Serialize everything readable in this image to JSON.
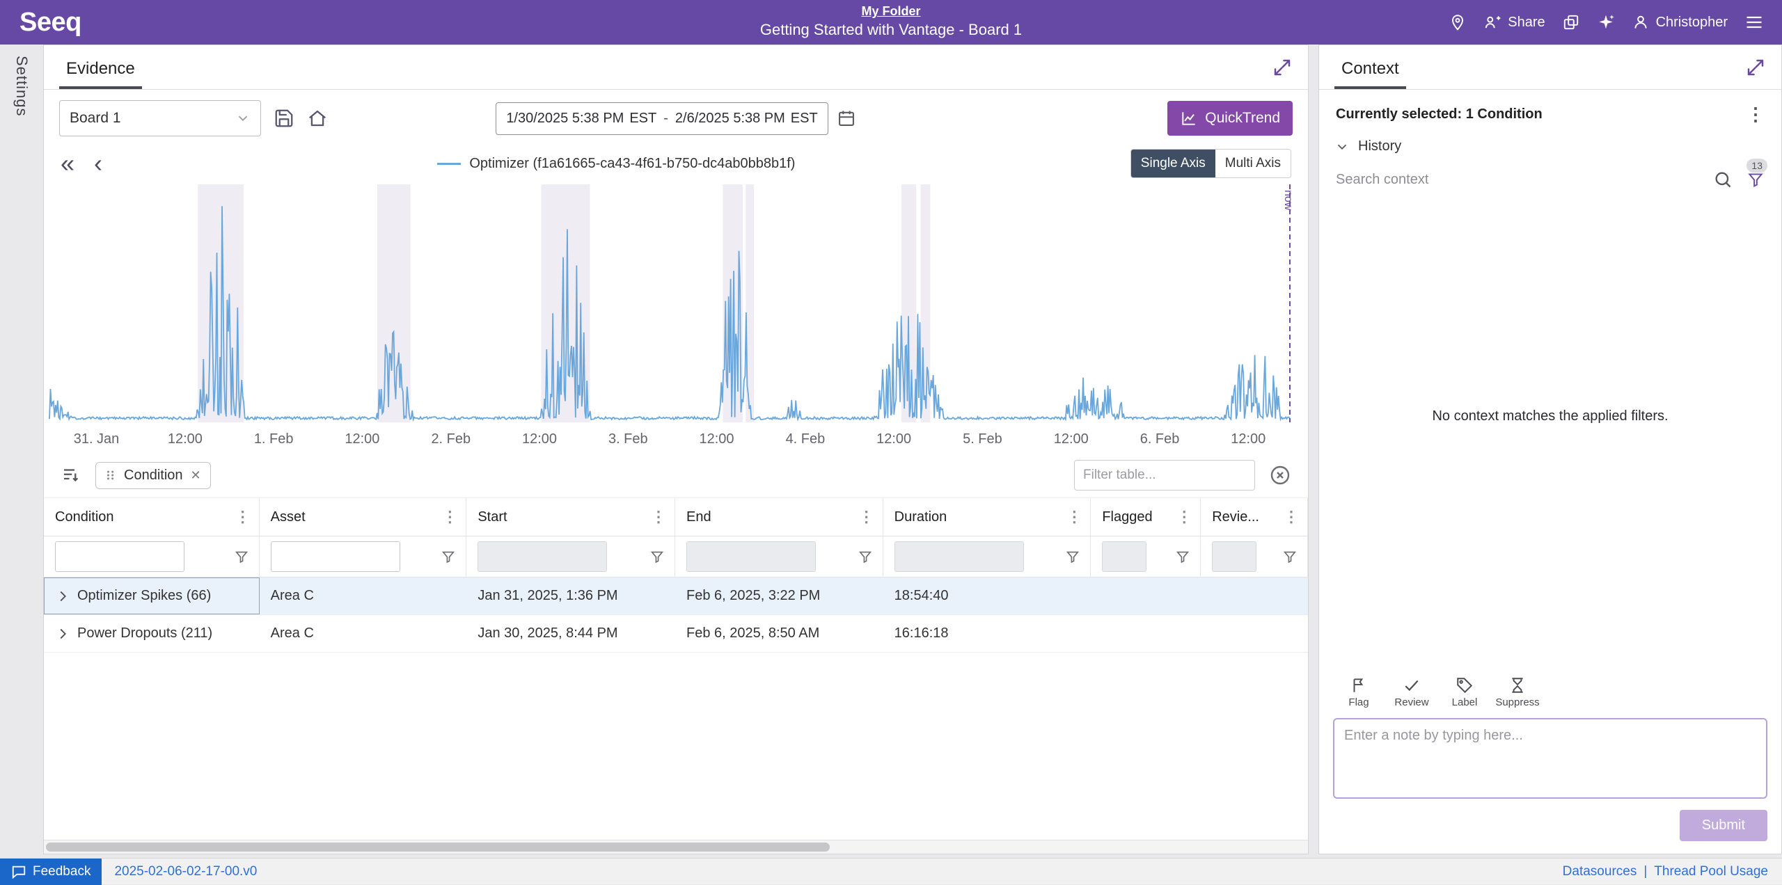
{
  "header": {
    "logo": "Seeq",
    "breadcrumb": "My Folder",
    "title": "Getting Started with Vantage - Board 1",
    "share_label": "Share",
    "username": "Christopher"
  },
  "left_rail": {
    "settings_label": "Settings"
  },
  "evidence": {
    "tab_label": "Evidence",
    "board_select": "Board 1",
    "date_range": {
      "start": "1/30/2025 5:38 PM",
      "start_tz": "EST",
      "separator": "-",
      "end": "2/6/2025 5:38 PM",
      "end_tz": "EST"
    },
    "quicktrend_label": "QuickTrend",
    "legend": "Optimizer (f1a61665-ca43-4f61-b750-dc4ab0bb8b1f)",
    "axis_toggle": {
      "single": "Single Axis",
      "multi": "Multi Axis",
      "active": "single"
    },
    "now_label": "now"
  },
  "chart_data": {
    "type": "line",
    "series_name": "Optimizer (f1a61665-ca43-4f61-b750-dc4ab0bb8b1f)",
    "x_ticks": [
      "31. Jan",
      "12:00",
      "1. Feb",
      "12:00",
      "2. Feb",
      "12:00",
      "3. Feb",
      "12:00",
      "4. Feb",
      "12:00",
      "5. Feb",
      "12:00",
      "6. Feb",
      "12:00"
    ],
    "x_range_hours": 168,
    "first_tick_hour": 6.37,
    "tick_interval_hours": 12,
    "now_at_hour": 168,
    "line_color": "#69a6db",
    "band_color": "#efecf4",
    "spike_clusters": [
      {
        "center": 0.8,
        "half_width": 2.6,
        "amp": 0.2
      },
      {
        "center": 23.2,
        "half_width": 3.4,
        "amp": 1.0
      },
      {
        "center": 46.6,
        "half_width": 2.7,
        "amp": 0.44
      },
      {
        "center": 69.8,
        "half_width": 3.5,
        "amp": 1.0
      },
      {
        "center": 93.0,
        "half_width": 2.4,
        "amp": 0.95
      },
      {
        "center": 100.8,
        "half_width": 1.2,
        "amp": 0.16
      },
      {
        "center": 116.4,
        "half_width": 4.8,
        "amp": 0.5
      },
      {
        "center": 141.5,
        "half_width": 4.6,
        "amp": 0.22
      },
      {
        "center": 163.2,
        "half_width": 4.2,
        "amp": 0.32
      }
    ],
    "shaded_bands": [
      [
        20.1,
        26.3
      ],
      [
        44.4,
        48.9
      ],
      [
        66.6,
        73.2
      ],
      [
        91.2,
        93.9
      ],
      [
        94.3,
        95.4
      ],
      [
        115.4,
        117.4
      ],
      [
        118.0,
        119.3
      ]
    ]
  },
  "table": {
    "chip": {
      "label": "Condition"
    },
    "filter_placeholder": "Filter table...",
    "columns": [
      "Condition",
      "Asset",
      "Start",
      "End",
      "Duration",
      "Flagged",
      "Revie..."
    ],
    "rows": [
      {
        "condition": "Optimizer Spikes (66)",
        "asset": "Area C",
        "start": "Jan 31, 2025, 1:36 PM",
        "end": "Feb 6, 2025, 3:22 PM",
        "duration": "18:54:40",
        "flagged": "",
        "reviewed": "",
        "selected": true
      },
      {
        "condition": "Power Dropouts (211)",
        "asset": "Area C",
        "start": "Jan 30, 2025, 8:44 PM",
        "end": "Feb 6, 2025, 8:50 AM",
        "duration": "16:16:18",
        "flagged": "",
        "reviewed": "",
        "selected": false
      }
    ]
  },
  "context": {
    "tab_label": "Context",
    "selected_text": "Currently selected: 1 Condition",
    "history_label": "History",
    "search_placeholder": "Search context",
    "badge": "13",
    "empty_text": "No context matches the applied filters.",
    "actions": [
      {
        "key": "flag",
        "label": "Flag"
      },
      {
        "key": "review",
        "label": "Review"
      },
      {
        "key": "label",
        "label": "Label"
      },
      {
        "key": "suppress",
        "label": "Suppress"
      }
    ],
    "note_placeholder": "Enter a note by typing here...",
    "submit_label": "Submit"
  },
  "statusbar": {
    "feedback_label": "Feedback",
    "version": "2025-02-06-02-17-00.v0",
    "links": [
      "Datasources",
      "Thread Pool Usage"
    ]
  },
  "colors": {
    "header_purple": "#6648a5",
    "accent_purple": "#6a4aa0",
    "quicktrend_purple": "#8348a8",
    "selected_row": "#e9f1fb",
    "line_blue": "#69a6db",
    "link_blue": "#2f6fd6",
    "feedback_blue": "#1b67c9",
    "axis_active": "#3f4e63"
  }
}
